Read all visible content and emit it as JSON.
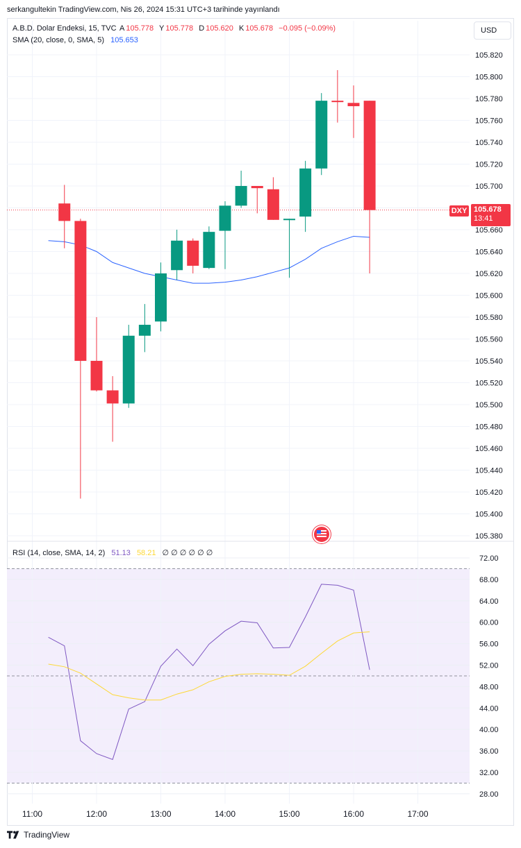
{
  "header": {
    "publish_line": "serkangultekin TradingView.com, Nis 26, 2024 15:31 UTC+3 tarihinde yayınlandı"
  },
  "legend": {
    "symbol": "A.B.D. Dolar Endeksi, 15, TVC",
    "open_label": "A",
    "open": "105.778",
    "high_label": "Y",
    "high": "105.778",
    "low_label": "D",
    "low": "105.620",
    "close_label": "K",
    "close": "105.678",
    "change": "−0.095 (−0.09%)",
    "sma_label": "SMA (20, close, 0, SMA, 5)",
    "sma_value": "105.653"
  },
  "rsi_legend": {
    "label": "RSI (14, close, SMA, 14, 2)",
    "rsi_value": "51.13",
    "ma_value": "58.21",
    "zeros": "∅ ∅ ∅ ∅ ∅ ∅"
  },
  "currency_button": "USD",
  "price_tag": {
    "symbol": "DXY",
    "price": "105.678",
    "countdown": "13:41"
  },
  "footer": {
    "brand": "TradingView"
  },
  "colors": {
    "up": "#089981",
    "down": "#f23645",
    "sma": "#2962ff",
    "rsi": "#7e57c2",
    "rsi_ma": "#fdd835",
    "rsi_band": "#f3eefc"
  },
  "icons": {
    "event_flag": "us-flag-icon",
    "logo": "tradingview-logo-icon"
  },
  "chart_data": [
    {
      "type": "candlestick",
      "x_ticks": [
        "11:00",
        "12:00",
        "13:00",
        "14:00",
        "15:00",
        "16:00",
        "17:00"
      ],
      "y_ticks": [
        "105.820",
        "105.800",
        "105.780",
        "105.760",
        "105.740",
        "105.720",
        "105.700",
        "105.680",
        "105.660",
        "105.640",
        "105.620",
        "105.600",
        "105.580",
        "105.560",
        "105.540",
        "105.520",
        "105.500",
        "105.480",
        "105.460",
        "105.440",
        "105.420",
        "105.400",
        "105.380"
      ],
      "ylim": [
        105.375,
        105.83
      ],
      "candles": [
        {
          "t": 0.5,
          "o": 105.684,
          "h": 105.701,
          "l": 105.643,
          "c": 105.668
        },
        {
          "t": 0.75,
          "o": 105.668,
          "h": 105.67,
          "l": 105.414,
          "c": 105.54
        },
        {
          "t": 1.0,
          "o": 105.54,
          "h": 105.58,
          "l": 105.512,
          "c": 105.513
        },
        {
          "t": 1.25,
          "o": 105.513,
          "h": 105.526,
          "l": 105.466,
          "c": 105.501
        },
        {
          "t": 1.5,
          "o": 105.501,
          "h": 105.573,
          "l": 105.497,
          "c": 105.563
        },
        {
          "t": 1.75,
          "o": 105.563,
          "h": 105.592,
          "l": 105.548,
          "c": 105.573
        },
        {
          "t": 2.0,
          "o": 105.576,
          "h": 105.63,
          "l": 105.567,
          "c": 105.62
        },
        {
          "t": 2.25,
          "o": 105.623,
          "h": 105.66,
          "l": 105.614,
          "c": 105.65
        },
        {
          "t": 2.5,
          "o": 105.65,
          "h": 105.652,
          "l": 105.62,
          "c": 105.627
        },
        {
          "t": 2.75,
          "o": 105.625,
          "h": 105.663,
          "l": 105.624,
          "c": 105.658
        },
        {
          "t": 3.0,
          "o": 105.659,
          "h": 105.686,
          "l": 105.624,
          "c": 105.682
        },
        {
          "t": 3.25,
          "o": 105.682,
          "h": 105.714,
          "l": 105.68,
          "c": 105.7
        },
        {
          "t": 3.5,
          "o": 105.7,
          "h": 105.7,
          "l": 105.675,
          "c": 105.698
        },
        {
          "t": 3.75,
          "o": 105.697,
          "h": 105.708,
          "l": 105.669,
          "c": 105.669
        },
        {
          "t": 4.0,
          "o": 105.669,
          "h": 105.67,
          "l": 105.616,
          "c": 105.67
        },
        {
          "t": 4.25,
          "o": 105.672,
          "h": 105.723,
          "l": 105.658,
          "c": 105.716
        },
        {
          "t": 4.5,
          "o": 105.716,
          "h": 105.785,
          "l": 105.71,
          "c": 105.778
        },
        {
          "t": 4.75,
          "o": 105.778,
          "h": 105.806,
          "l": 105.758,
          "c": 105.777
        },
        {
          "t": 5.0,
          "o": 105.776,
          "h": 105.792,
          "l": 105.744,
          "c": 105.773
        },
        {
          "t": 5.25,
          "o": 105.778,
          "h": 105.778,
          "l": 105.62,
          "c": 105.678
        }
      ],
      "sma": {
        "name": "SMA",
        "t": [
          0.25,
          0.5,
          0.75,
          1.0,
          1.25,
          1.5,
          1.75,
          2.0,
          2.25,
          2.5,
          2.75,
          3.0,
          3.25,
          3.5,
          3.75,
          4.0,
          4.25,
          4.5,
          4.75,
          5.0,
          5.25
        ],
        "values": [
          105.65,
          105.649,
          105.646,
          105.64,
          105.63,
          105.625,
          105.62,
          105.617,
          105.614,
          105.611,
          105.611,
          105.612,
          105.614,
          105.617,
          105.621,
          105.625,
          105.633,
          105.643,
          105.649,
          105.654,
          105.653
        ]
      }
    },
    {
      "type": "line",
      "y_ticks": [
        "72.00",
        "68.00",
        "64.00",
        "60.00",
        "56.00",
        "52.00",
        "48.00",
        "44.00",
        "40.00",
        "36.00",
        "32.00",
        "28.00"
      ],
      "ylim": [
        27.0,
        73.5
      ],
      "bands": {
        "upper": 70,
        "middle": 50,
        "lower": 30
      },
      "series": [
        {
          "name": "RSI",
          "t": [
            0.25,
            0.5,
            0.75,
            1.0,
            1.25,
            1.5,
            1.75,
            2.0,
            2.25,
            2.5,
            2.75,
            3.0,
            3.25,
            3.5,
            3.75,
            4.0,
            4.25,
            4.5,
            4.75,
            5.0,
            5.25
          ],
          "values": [
            57.2,
            55.6,
            37.9,
            35.5,
            34.4,
            43.8,
            45.2,
            51.8,
            55.0,
            51.9,
            55.9,
            58.4,
            60.2,
            59.9,
            55.2,
            55.3,
            61.0,
            67.1,
            66.9,
            66.0,
            51.13
          ]
        },
        {
          "name": "RSI MA",
          "t": [
            0.25,
            0.5,
            0.75,
            1.0,
            1.25,
            1.5,
            1.75,
            2.0,
            2.25,
            2.5,
            2.75,
            3.0,
            3.25,
            3.5,
            3.75,
            4.0,
            4.25,
            4.5,
            4.75,
            5.0,
            5.25
          ],
          "values": [
            52.2,
            51.7,
            50.5,
            48.5,
            46.5,
            45.9,
            45.5,
            45.5,
            46.6,
            47.4,
            48.9,
            49.9,
            50.3,
            50.4,
            50.3,
            50.1,
            51.8,
            54.2,
            56.5,
            58.0,
            58.21
          ]
        }
      ]
    }
  ]
}
